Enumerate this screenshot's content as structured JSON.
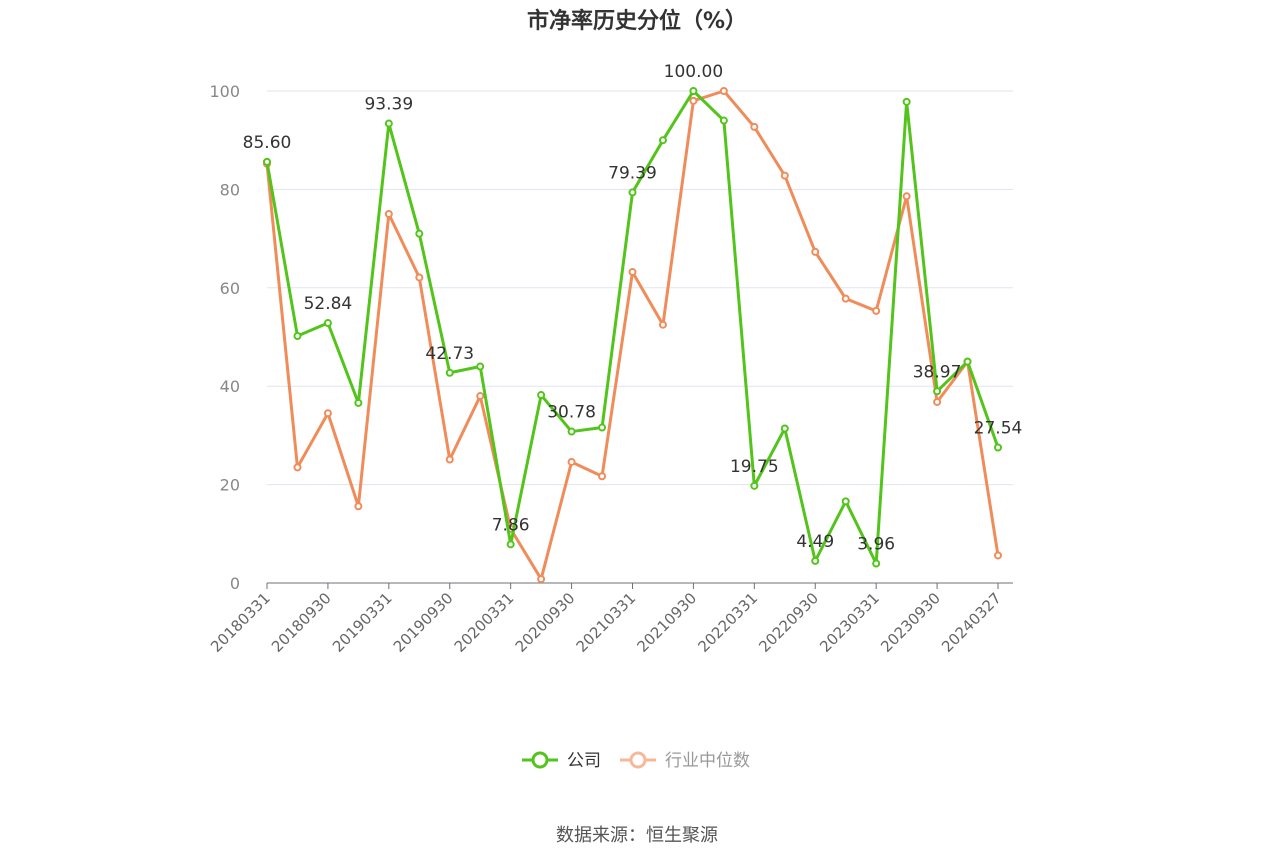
{
  "chart_data": {
    "type": "line",
    "title": "市净率历史分位（%）",
    "source": "数据来源：恒生聚源",
    "ylim": [
      0,
      100
    ],
    "y_ticks": [
      0,
      20,
      40,
      60,
      80,
      100
    ],
    "grid": true,
    "legend_position": "bottom",
    "x": [
      "20180331",
      "20180630",
      "20180930",
      "20181231",
      "20190331",
      "20190630",
      "20190930",
      "20191231",
      "20200331",
      "20200630",
      "20200930",
      "20201231",
      "20210331",
      "20210630",
      "20210930",
      "20211231",
      "20220331",
      "20220630",
      "20220930",
      "20221231",
      "20230331",
      "20230630",
      "20230930",
      "20231231",
      "20240327"
    ],
    "x_tick_labels": [
      "20180331",
      "20180930",
      "20190331",
      "20190930",
      "20200331",
      "20200930",
      "20210331",
      "20210930",
      "20220331",
      "20220930",
      "20230331",
      "20230930",
      "20240327"
    ],
    "series": [
      {
        "name": "公司",
        "color": "#52c41a",
        "values": [
          85.6,
          50.2,
          52.84,
          36.6,
          93.39,
          71.0,
          42.73,
          44.0,
          7.86,
          38.2,
          30.78,
          31.6,
          79.39,
          90.0,
          100.0,
          94.0,
          19.75,
          31.4,
          4.49,
          16.6,
          3.96,
          97.8,
          38.97,
          45.0,
          27.54
        ],
        "labels": {
          "0": "85.60",
          "2": "52.84",
          "4": "93.39",
          "6": "42.73",
          "8": "7.86",
          "10": "30.78",
          "12": "79.39",
          "14": "100.00",
          "16": "19.75",
          "18": "4.49",
          "20": "3.96",
          "22": "38.97",
          "24": "27.54"
        }
      },
      {
        "name": "行业中位数",
        "color": "#f08c5a",
        "values": [
          85.2,
          23.5,
          34.5,
          15.6,
          75.0,
          62.1,
          25.1,
          38.0,
          11.0,
          0.8,
          24.6,
          21.7,
          63.2,
          52.5,
          98.0,
          100.0,
          92.7,
          82.8,
          67.3,
          57.8,
          55.3,
          78.6,
          36.8,
          45.0,
          5.6
        ]
      }
    ]
  }
}
